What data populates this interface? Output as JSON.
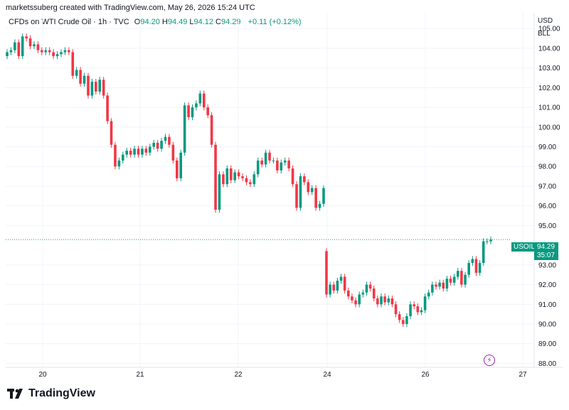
{
  "header": {
    "attribution": "marketssuberg created with TradingView.com, May 26, 2026 15:24 UTC"
  },
  "symbol": {
    "title": "CFDs on WTI Crude Oil · 1h · TVC",
    "o_label": "O",
    "o": "94.20",
    "h_label": "H",
    "h": "94.49",
    "l_label": "L",
    "l": "94.12",
    "c_label": "C",
    "c": "94.29",
    "change": "+0.11 (+0.12%)"
  },
  "axis_units": {
    "currency": "USD",
    "unit": "BLL"
  },
  "price_tag": {
    "symbol": "USOIL",
    "price": "94.29",
    "countdown": "35:07"
  },
  "footer": {
    "brand": "TradingView"
  },
  "colors": {
    "up": "#089981",
    "down": "#f23645",
    "grid": "#f0f3fa",
    "accent": "#9c27b0"
  },
  "chart_data": {
    "type": "candlestick",
    "title": "CFDs on WTI Crude Oil · 1h · TVC",
    "ylim": [
      87.8,
      105.8
    ],
    "y_ticks": [
      "105.00",
      "104.00",
      "103.00",
      "102.00",
      "101.00",
      "100.00",
      "99.00",
      "98.00",
      "97.00",
      "96.00",
      "95.00",
      "93.00",
      "92.00",
      "91.00",
      "90.00",
      "89.00",
      "88.00"
    ],
    "x_ticks": [
      "20",
      "21",
      "22",
      "24",
      "26",
      "27"
    ],
    "last_price": 94.29,
    "segments": [
      {
        "closes": [
          103.8,
          103.9,
          104.3,
          103.6,
          104.6,
          104.5,
          104.1,
          104.2,
          103.9,
          103.8,
          103.9,
          103.8,
          103.6,
          103.7,
          103.8,
          103.9,
          103.8,
          102.6,
          102.9,
          102.2,
          102.6,
          101.6,
          102.3,
          101.8,
          102.4,
          101.6,
          100.3,
          99.1,
          98.0,
          98.3,
          98.6,
          98.8,
          98.6,
          98.9,
          98.6,
          98.9,
          98.7,
          99.0,
          99.2,
          98.9,
          99.3,
          99.5,
          99.1,
          98.3,
          97.4,
          98.7,
          101.1,
          100.5,
          101.0,
          101.2,
          101.7,
          101.0,
          100.6,
          99.1,
          95.8,
          97.6,
          97.1,
          97.9,
          97.3,
          97.7,
          97.5,
          97.4,
          97.2,
          97.1,
          97.6,
          98.3,
          98.1,
          98.7,
          98.3,
          98.3,
          97.8,
          98.2,
          98.3,
          97.9,
          97.1,
          95.9,
          97.5,
          97.2,
          96.7,
          96.9,
          95.9,
          96.1,
          96.9
        ]
      },
      {
        "closes": [
          91.5,
          92.0,
          91.7,
          92.2,
          92.4,
          91.7,
          91.4,
          91.2,
          91.0,
          91.5,
          91.6,
          92.0,
          91.8,
          91.3,
          91.0,
          91.4,
          91.1,
          91.3,
          91.0,
          90.5,
          90.2,
          90.0,
          90.4,
          91.0,
          90.9,
          90.6,
          90.7,
          91.4,
          91.6,
          92.0,
          91.9,
          92.1,
          91.8,
          92.3,
          92.1,
          92.4,
          92.7,
          92.0,
          92.5,
          93.1,
          93.3,
          92.6,
          93.1,
          94.2,
          94.2,
          94.29
        ]
      }
    ]
  }
}
